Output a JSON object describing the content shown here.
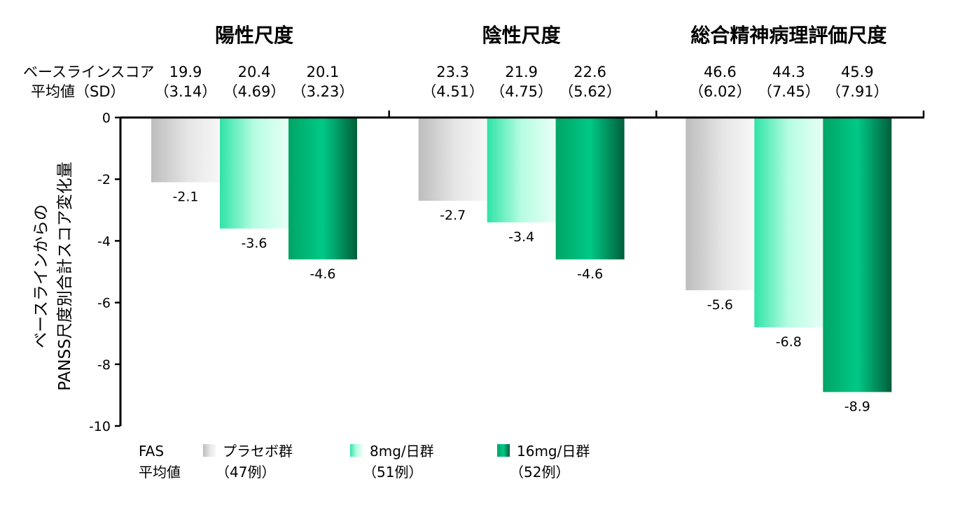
{
  "chart_data": {
    "type": "bar",
    "categories": [
      "陽性尺度",
      "陰性尺度",
      "総合精神病理評価尺度"
    ],
    "series": [
      {
        "name": "プラセボ群",
        "n_label": "（47例）",
        "values": [
          -2.1,
          -2.7,
          -5.6
        ],
        "color": "#d9d9d9"
      },
      {
        "name": "8mg/日群",
        "n_label": "（51例）",
        "values": [
          -3.6,
          -3.4,
          -6.8
        ],
        "color": "#7fffd4"
      },
      {
        "name": "16mg/日群",
        "n_label": "（52例）",
        "values": [
          -4.6,
          -4.6,
          -8.9
        ],
        "color": "#00a86b"
      }
    ],
    "value_labels": [
      [
        "-2.1",
        "-2.7",
        "-5.6"
      ],
      [
        "-3.6",
        "-3.4",
        "-6.8"
      ],
      [
        "-4.6",
        "-4.6",
        "-8.9"
      ]
    ],
    "baseline": {
      "label_line1": "ベースラインスコア",
      "label_line2": "平均値（SD）",
      "groups": [
        [
          [
            "19.9",
            "（3.14）"
          ],
          [
            "20.4",
            "（4.69）"
          ],
          [
            "20.1",
            "（3.23）"
          ]
        ],
        [
          [
            "23.3",
            "（4.51）"
          ],
          [
            "21.9",
            "（4.75）"
          ],
          [
            "22.6",
            "（5.62）"
          ]
        ],
        [
          [
            "46.6",
            "（6.02）"
          ],
          [
            "44.3",
            "（7.45）"
          ],
          [
            "45.9",
            "（7.91）"
          ]
        ]
      ]
    },
    "ylabel_line1": "ベースラインからの",
    "ylabel_line2": "PANSS尺度別合計スコア変化量",
    "ylim": [
      -10,
      0
    ],
    "yticks": [
      0,
      -2,
      -4,
      -6,
      -8,
      -10
    ],
    "ytick_labels": [
      "0",
      "-2",
      "-4",
      "-6",
      "-8",
      "-10"
    ],
    "legend": {
      "header_line1": "FAS",
      "header_line2": "平均値",
      "position": "bottom"
    },
    "grid": false
  }
}
